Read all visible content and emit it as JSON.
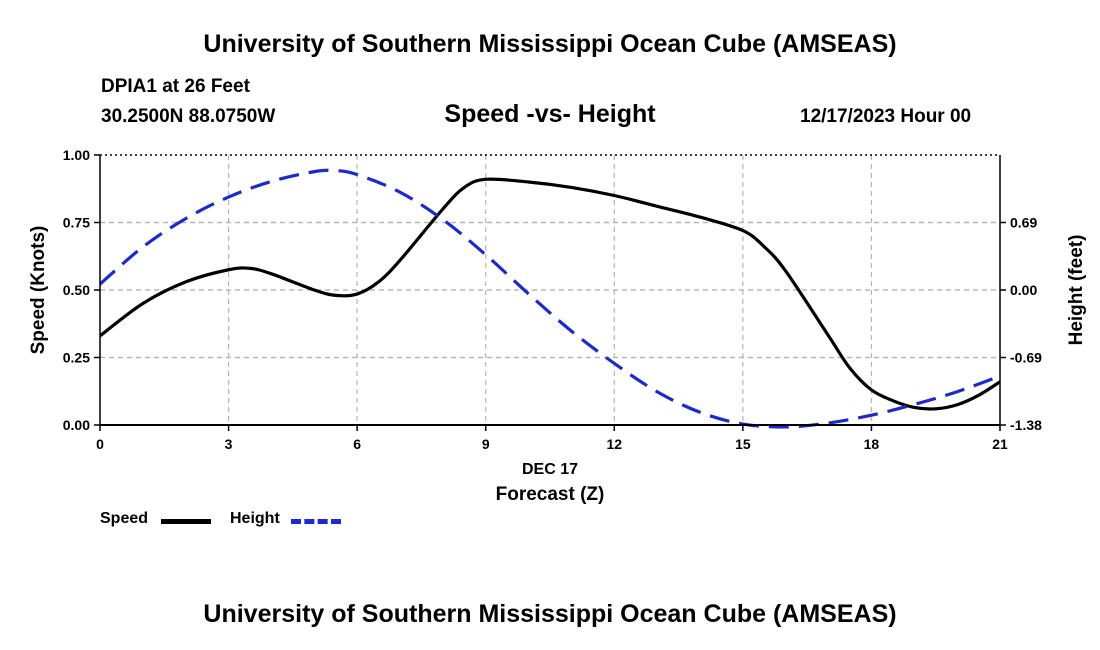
{
  "header": {
    "title_top": "University of Southern Mississippi Ocean Cube (AMSEAS)",
    "station": "DPIA1 at 26 Feet",
    "coords": "30.2500N  88.0750W",
    "datetime": "12/17/2023 Hour 00",
    "title_bottom": "University of Southern Mississippi Ocean Cube (AMSEAS)"
  },
  "chart_data": {
    "type": "line",
    "title": "Speed -vs- Height",
    "xlabel": "Forecast (Z)",
    "xdate_label": "DEC 17",
    "ylabel_left": "Speed (Knots)",
    "ylabel_right": "Height (feet)",
    "xlim": [
      0,
      21
    ],
    "ylim_left": [
      0,
      1
    ],
    "ylim_right": [
      -1.38,
      1.38
    ],
    "xticks": [
      "0",
      "3",
      "6",
      "9",
      "12",
      "15",
      "18",
      "21"
    ],
    "yticks_left": [
      "0.00",
      "0.25",
      "0.50",
      "0.75",
      "1.00"
    ],
    "yticks_right": [
      "-1.38",
      "-0.69",
      "0.00",
      "0.69"
    ],
    "grid": true,
    "legend_position": "bottom-left",
    "colors": {
      "speed": "#000000",
      "height": "#1a2acc",
      "grid": "#b5b5b5"
    },
    "series": [
      {
        "name": "Speed",
        "axis": "left",
        "style": "solid",
        "x": [
          0,
          1,
          2,
          3,
          3.5,
          4,
          5,
          5.5,
          6,
          6.5,
          7,
          8,
          8.5,
          9,
          10,
          11,
          12,
          13,
          14,
          15,
          15.5,
          16,
          17,
          17.5,
          18,
          18.5,
          19,
          19.5,
          20,
          20.5,
          21
        ],
        "values": [
          0.33,
          0.45,
          0.53,
          0.575,
          0.58,
          0.56,
          0.5,
          0.48,
          0.485,
          0.53,
          0.61,
          0.8,
          0.88,
          0.91,
          0.9,
          0.88,
          0.85,
          0.81,
          0.77,
          0.72,
          0.66,
          0.57,
          0.33,
          0.21,
          0.13,
          0.09,
          0.065,
          0.06,
          0.075,
          0.11,
          0.16
        ]
      },
      {
        "name": "Height",
        "axis": "right",
        "style": "dashed",
        "x": [
          0,
          1,
          2,
          3,
          4,
          5,
          5.5,
          6,
          7,
          8,
          9,
          10,
          11,
          12,
          13,
          14,
          15,
          16,
          17,
          18,
          19,
          20,
          21
        ],
        "values": [
          0.06,
          0.44,
          0.73,
          0.95,
          1.11,
          1.21,
          1.22,
          1.18,
          1.0,
          0.72,
          0.36,
          -0.04,
          -0.42,
          -0.75,
          -1.04,
          -1.25,
          -1.37,
          -1.4,
          -1.36,
          -1.28,
          -1.17,
          -1.04,
          -0.88
        ]
      }
    ]
  }
}
